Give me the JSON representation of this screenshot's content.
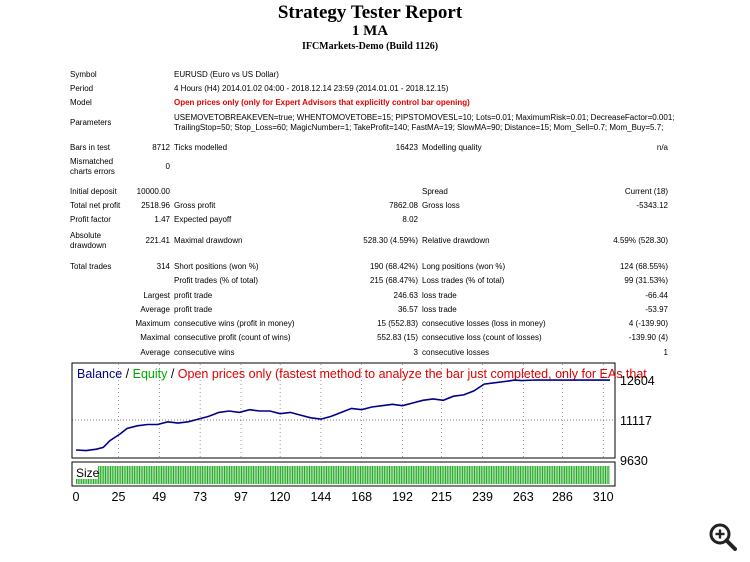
{
  "header": {
    "title": "Strategy Tester Report",
    "subtitle": "1 MA",
    "server": "IFCMarkets-Demo (Build 1126)"
  },
  "info": {
    "symbol_label": "Symbol",
    "symbol_value": "EURUSD (Euro vs US Dollar)",
    "period_label": "Period",
    "period_value": "4 Hours (H4) 2014.01.02 04:00 - 2018.12.14 23:59 (2014.01.01 - 2018.12.15)",
    "model_label": "Model",
    "model_value": "Open prices only (only for Expert Advisors that explicitly control bar opening)",
    "params_label": "Parameters",
    "params_line1": "USEMOVETOBREAKEVEN=true; WHENTOMOVETOBE=15; PIPSTOMOVESL=10; Lots=0.01; MaximumRisk=0.01; DecreaseFactor=0.001;",
    "params_line2": "TrailingStop=50; Stop_Loss=60; MagicNumber=1; TakeProfit=140; FastMA=19; SlowMA=90; Distance=15; Mom_Sell=0.7; Mom_Buy=5.7;"
  },
  "stats": {
    "bars_label": "Bars in test",
    "bars_value": "8712",
    "ticks_label": "Ticks modelled",
    "ticks_value": "16423",
    "quality_label": "Modelling quality",
    "quality_value": "n/a",
    "mismatch_label1": "Mismatched",
    "mismatch_label2": "charts errors",
    "mismatch_value": "0",
    "deposit_label": "Initial deposit",
    "deposit_value": "10000.00",
    "spread_label": "Spread",
    "spread_value": "Current (18)",
    "netprofit_label": "Total net profit",
    "netprofit_value": "2518.96",
    "grossprofit_label": "Gross profit",
    "grossprofit_value": "7862.08",
    "grossloss_label": "Gross loss",
    "grossloss_value": "-5343.12",
    "pf_label": "Profit factor",
    "pf_value": "1.47",
    "ep_label": "Expected payoff",
    "ep_value": "8.02",
    "absdd_label1": "Absolute",
    "absdd_label2": "drawdown",
    "absdd_value": "221.41",
    "maxdd_label": "Maximal drawdown",
    "maxdd_value": "528.30 (4.59%)",
    "reldd_label": "Relative drawdown",
    "reldd_value": "4.59% (528.30)",
    "trades_label": "Total trades",
    "trades_value": "314",
    "short_label": "Short positions (won %)",
    "short_value": "190 (68.42%)",
    "long_label": "Long positions (won %)",
    "long_value": "124 (68.55%)",
    "ptrades_label": "Profit trades (% of total)",
    "ptrades_value": "215 (68.47%)",
    "ltrades_label": "Loss trades (% of total)",
    "ltrades_value": "99 (31.53%)",
    "largest_label": "Largest",
    "lpt_label": "profit trade",
    "lpt_value": "246.63",
    "llt_label": "loss trade",
    "llt_value": "-66.44",
    "average_label": "Average",
    "apt_label": "profit trade",
    "apt_value": "36.57",
    "alt_label": "loss trade",
    "alt_value": "-53.97",
    "maximum_label": "Maximum",
    "mcw_label": "consecutive wins (profit in money)",
    "mcw_value": "15 (552.83)",
    "mcl_label": "consecutive losses (loss in money)",
    "mcl_value": "4 (-139.90)",
    "maximal_label": "Maximal",
    "mcp_label": "consecutive profit (count of wins)",
    "mcp_value": "552.83 (15)",
    "mcloss_label": "consecutive loss (count of losses)",
    "mcloss_value": "-139.90 (4)",
    "average2_label": "Average",
    "acw_label": "consecutive wins",
    "acw_value": "3",
    "acl_label": "consecutive losses",
    "acl_value": "1"
  },
  "chart_data": {
    "type": "line",
    "legend_balance": "Balance",
    "legend_sep": " / ",
    "legend_equity": "Equity",
    "legend_sep2": " / ",
    "legend_note": "Open prices only (fastest method to analyze the bar just completed, only for EAs that",
    "size_label": "Size",
    "y_ticks": [
      "12604",
      "11117",
      "9630"
    ],
    "x_ticks": [
      "0",
      "25",
      "49",
      "73",
      "97",
      "120",
      "144",
      "168",
      "192",
      "215",
      "239",
      "263",
      "286",
      "310"
    ],
    "ylim": [
      9630,
      12604
    ],
    "xlim": [
      0,
      314
    ],
    "series": [
      {
        "name": "Balance",
        "color": "#00008b",
        "x": [
          0,
          6,
          12,
          16,
          20,
          26,
          30,
          36,
          42,
          48,
          54,
          60,
          66,
          72,
          78,
          84,
          90,
          96,
          102,
          108,
          114,
          120,
          126,
          132,
          138,
          144,
          150,
          156,
          162,
          168,
          174,
          180,
          186,
          192,
          198,
          204,
          210,
          216,
          222,
          228,
          234,
          240,
          246,
          252,
          258,
          262,
          270,
          314
        ],
        "values": [
          10000,
          9980,
          10030,
          10100,
          10350,
          10600,
          10800,
          10900,
          10950,
          10950,
          11050,
          11000,
          11050,
          11150,
          11250,
          11400,
          11450,
          11400,
          11500,
          11450,
          11450,
          11350,
          11400,
          11300,
          11200,
          11150,
          11250,
          11400,
          11550,
          11500,
          11600,
          11650,
          11700,
          11650,
          11750,
          11850,
          11900,
          11850,
          12000,
          12050,
          12200,
          12450,
          12500,
          12550,
          12600,
          12580,
          12604,
          12600
        ]
      }
    ],
    "volume_color": "#22aa22"
  },
  "colors": {
    "title": "#000000",
    "model_red": "#e00000",
    "balance": "#00008b",
    "equity": "#00aa00",
    "note": "#e00000"
  },
  "icons": {
    "zoom": "zoom-in-icon"
  }
}
